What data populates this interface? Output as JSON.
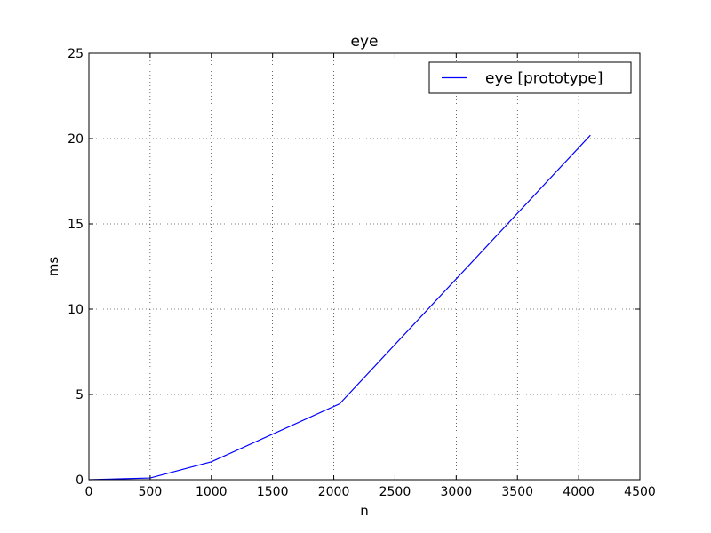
{
  "chart_data": {
    "type": "line",
    "title": "eye",
    "xlabel": "n",
    "ylabel": "ms",
    "xlim": [
      0,
      4500
    ],
    "ylim": [
      0,
      25
    ],
    "xticks": [
      0,
      500,
      1000,
      1500,
      2000,
      2500,
      3000,
      3500,
      4000,
      4500
    ],
    "yticks": [
      0,
      5,
      10,
      15,
      20,
      25
    ],
    "grid": true,
    "legend_position": "top-right",
    "series": [
      {
        "name": "eye [prototype]",
        "color": "#0000ff",
        "x": [
          1,
          500,
          1000,
          2048,
          4096
        ],
        "y": [
          0.0,
          0.1,
          1.05,
          4.45,
          20.2
        ]
      }
    ]
  }
}
